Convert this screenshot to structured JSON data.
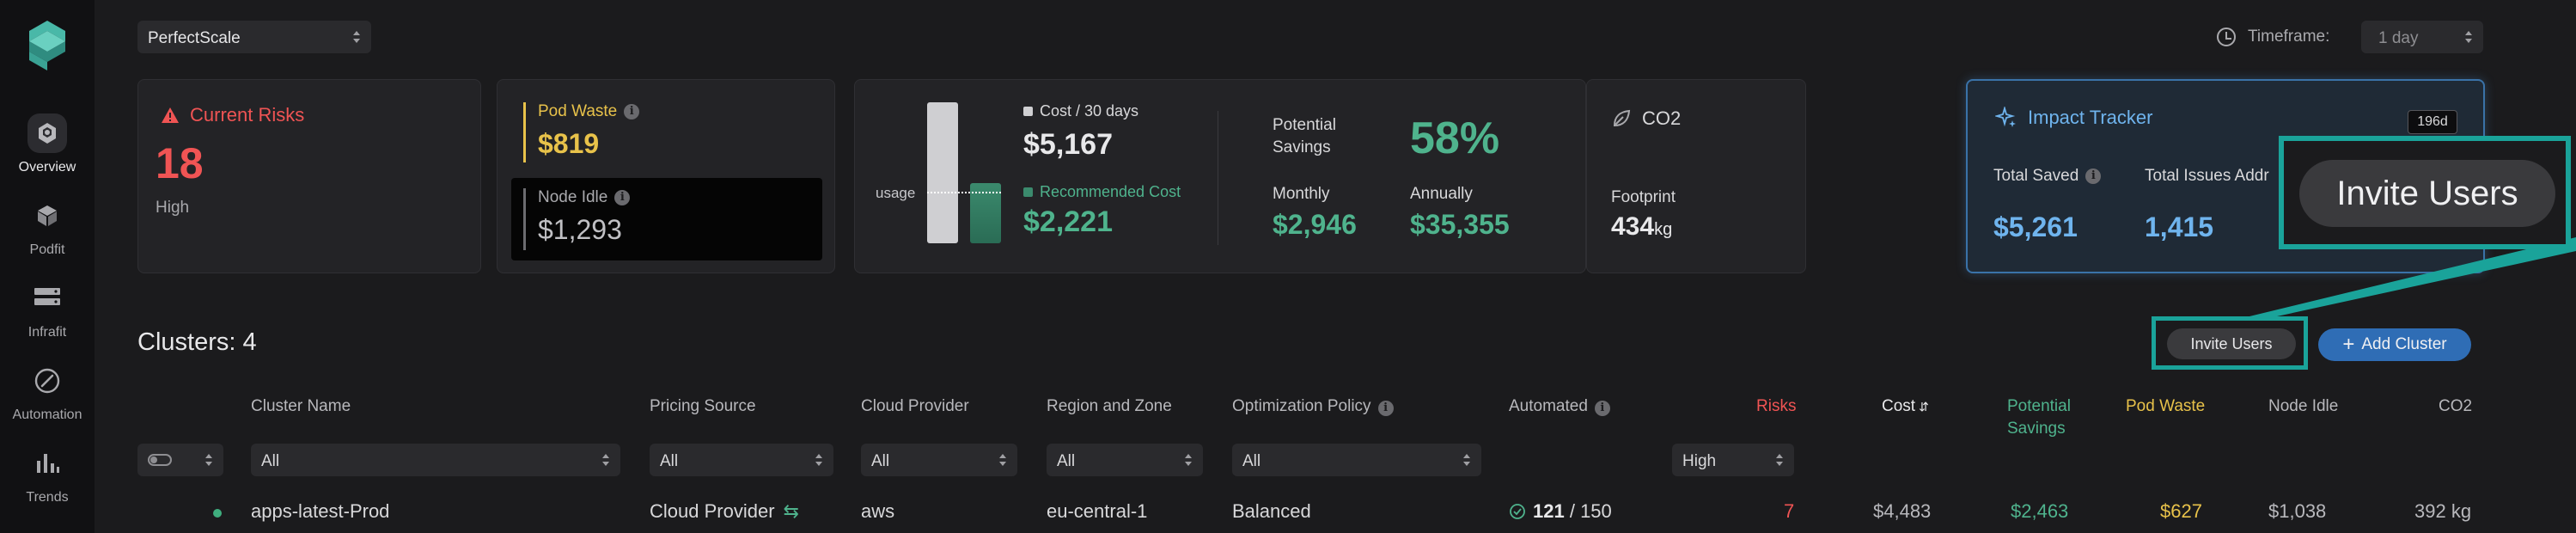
{
  "colors": {
    "accent_green": "#4fb38d",
    "risk_red": "#f05454",
    "waste_yellow": "#e8c24a",
    "impact_blue": "#6fb4ee",
    "callout_teal": "#1aa39a",
    "add_button": "#2f6db5"
  },
  "sidebar": {
    "items": [
      {
        "label": "Overview",
        "icon": "overview-icon",
        "active": true
      },
      {
        "label": "Podfit",
        "icon": "cube-icon"
      },
      {
        "label": "Infrafit",
        "icon": "server-icon"
      },
      {
        "label": "Automation",
        "icon": "compass-icon"
      },
      {
        "label": "Trends",
        "icon": "bar-chart-icon"
      }
    ]
  },
  "header": {
    "org": "PerfectScale",
    "timeframe_label": "Timeframe:",
    "timeframe_value": "1 day"
  },
  "cards": {
    "risks": {
      "title": "Current Risks",
      "value": "18",
      "sub": "High"
    },
    "waste": {
      "pod_waste_label": "Pod Waste",
      "pod_waste_value": "$819",
      "node_idle_label": "Node Idle",
      "node_idle_value": "$1,293"
    },
    "cost": {
      "usage_label": "usage",
      "cost_label": "Cost / 30 days",
      "cost_value": "$5,167",
      "recommended_label": "Recommended Cost",
      "recommended_value": "$2,221",
      "potential_savings_label": "Potential Savings",
      "potential_savings_pct": "58%",
      "monthly_label": "Monthly",
      "monthly_value": "$2,946",
      "annually_label": "Annually",
      "annually_value": "$35,355"
    },
    "co2": {
      "title": "CO2",
      "footprint_label": "Footprint",
      "footprint_value": "434",
      "footprint_unit": "kg"
    },
    "impact": {
      "title": "Impact Tracker",
      "badge": "196d",
      "total_saved_label": "Total Saved",
      "total_saved_value": "$5,261",
      "total_issues_label": "Total Issues Addr",
      "total_issues_value": "1,415"
    }
  },
  "callout": {
    "label": "Invite Users"
  },
  "clusters": {
    "title": "Clusters: 4",
    "invite_label": "Invite Users",
    "add_label": "Add Cluster",
    "columns": {
      "name": "Cluster Name",
      "pricing": "Pricing Source",
      "cloud": "Cloud Provider",
      "region": "Region and Zone",
      "policy": "Optimization Policy",
      "automated": "Automated",
      "risks": "Risks",
      "cost": "Cost",
      "savings_1": "Potential",
      "savings_2": "Savings",
      "pod_waste": "Pod Waste",
      "node_idle": "Node Idle",
      "co2": "CO2"
    },
    "filters": {
      "name": "All",
      "pricing": "All",
      "cloud": "All",
      "region": "All",
      "policy": "All",
      "risks": "High"
    },
    "rows": [
      {
        "name": "apps-latest-Prod",
        "pricing": "Cloud Provider",
        "cloud": "aws",
        "region": "eu-central-1",
        "policy": "Balanced",
        "automated_count": "121",
        "automated_total": "/ 150",
        "risks": "7",
        "cost": "$4,483",
        "savings": "$2,463",
        "pod_waste": "$627",
        "node_idle": "$1,038",
        "co2": "392 kg"
      }
    ]
  }
}
